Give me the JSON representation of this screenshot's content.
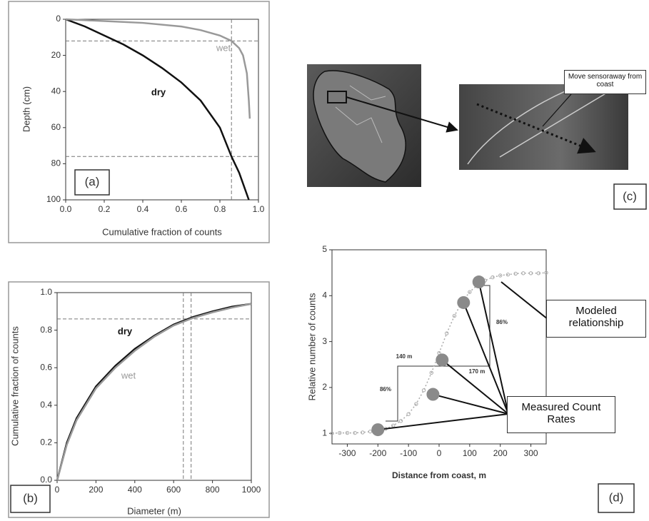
{
  "chart_data": [
    {
      "type": "line",
      "panel_label": "(a)",
      "xlabel": "Cumulative fraction of counts",
      "ylabel": "Depth (cm)",
      "xlim": [
        0,
        1
      ],
      "ylim": [
        0,
        100
      ],
      "y_inverted": true,
      "xticks": [
        {
          "value": 0,
          "label": "0.0"
        },
        {
          "value": 0.2,
          "label": "0.2"
        },
        {
          "value": 0.4,
          "label": "0.4"
        },
        {
          "value": 0.6,
          "label": "0.6"
        },
        {
          "value": 0.8,
          "label": "0.8"
        },
        {
          "value": 1,
          "label": "1.0"
        }
      ],
      "yticks": [
        0,
        20,
        40,
        60,
        80,
        100
      ],
      "reference_lines": {
        "x": [
          0.86
        ],
        "y": [
          12,
          76
        ]
      },
      "series": [
        {
          "name": "dry",
          "color": "#111111",
          "x": [
            0,
            0.1,
            0.2,
            0.3,
            0.4,
            0.5,
            0.6,
            0.7,
            0.8,
            0.86,
            0.9,
            0.95
          ],
          "values": [
            0,
            4,
            9,
            14,
            20,
            27,
            35,
            45,
            60,
            76,
            85,
            100
          ]
        },
        {
          "name": "wet",
          "color": "#999999",
          "x": [
            0,
            0.4,
            0.6,
            0.7,
            0.8,
            0.86,
            0.9,
            0.92,
            0.94,
            0.95,
            0.955
          ],
          "values": [
            0,
            2,
            4,
            6,
            9,
            12,
            16,
            20,
            30,
            45,
            55
          ]
        }
      ]
    },
    {
      "type": "line",
      "panel_label": "(b)",
      "xlabel": "Diameter (m)",
      "ylabel": "Cumulative fraction of counts",
      "xlim": [
        0,
        1000
      ],
      "ylim": [
        0,
        1
      ],
      "xticks": [
        0,
        200,
        400,
        600,
        800,
        1000
      ],
      "yticks": [
        {
          "value": 0,
          "label": "0.0"
        },
        {
          "value": 0.2,
          "label": "0.2"
        },
        {
          "value": 0.4,
          "label": "0.4"
        },
        {
          "value": 0.6,
          "label": "0.6"
        },
        {
          "value": 0.8,
          "label": "0.8"
        },
        {
          "value": 1,
          "label": "1.0"
        }
      ],
      "reference_lines": {
        "x": [
          650,
          690
        ],
        "y": [
          0.86
        ]
      },
      "series": [
        {
          "name": "dry",
          "color": "#111111",
          "x": [
            0,
            50,
            100,
            200,
            300,
            400,
            500,
            600,
            700,
            800,
            900,
            1000
          ],
          "values": [
            0,
            0.2,
            0.33,
            0.5,
            0.61,
            0.7,
            0.77,
            0.83,
            0.87,
            0.9,
            0.925,
            0.94
          ]
        },
        {
          "name": "wet",
          "color": "#999999",
          "x": [
            0,
            50,
            100,
            200,
            300,
            400,
            500,
            600,
            700,
            800,
            900,
            1000
          ],
          "values": [
            0,
            0.19,
            0.32,
            0.49,
            0.6,
            0.69,
            0.765,
            0.825,
            0.865,
            0.895,
            0.92,
            0.94
          ]
        }
      ]
    },
    {
      "type": "scatter",
      "panel_label": "(d)",
      "xlabel": "Distance from coast, m",
      "ylabel": "Relative number of counts",
      "xlim": [
        -350,
        350
      ],
      "ylim": [
        0.77,
        5
      ],
      "xticks": [
        -300,
        -200,
        -100,
        0,
        100,
        200,
        300
      ],
      "yticks": [
        1,
        2,
        3,
        4,
        5
      ],
      "series": [
        {
          "color": "#aaaaaa",
          "x": [
            -350,
            -325,
            -300,
            -275,
            -250,
            -225,
            -200,
            -175,
            -150,
            -125,
            -100,
            -75,
            -50,
            -25,
            0,
            25,
            50,
            75,
            100,
            125,
            150,
            175,
            200,
            225,
            250,
            275,
            300,
            325,
            350
          ],
          "values": [
            1.0,
            1.01,
            1.01,
            1.01,
            1.02,
            1.04,
            1.06,
            1.1,
            1.17,
            1.27,
            1.42,
            1.64,
            1.94,
            2.32,
            2.75,
            3.18,
            3.56,
            3.86,
            4.08,
            4.23,
            4.33,
            4.4,
            4.44,
            4.46,
            4.48,
            4.49,
            4.49,
            4.49,
            4.5
          ]
        }
      ],
      "points": {
        "color": "#8a8a8a",
        "x": [
          -200,
          -20,
          10,
          80,
          130
        ],
        "values": [
          1.08,
          1.85,
          2.6,
          3.85,
          4.3
        ]
      },
      "annotations": [
        "140 m",
        "170 m",
        "86%",
        "86%"
      ],
      "callouts": [
        "Modeled relationship",
        "Measured Count Rates"
      ]
    }
  ],
  "image_panel": {
    "callout": "Move sensoraway from coast",
    "panel_label": "(c)"
  }
}
